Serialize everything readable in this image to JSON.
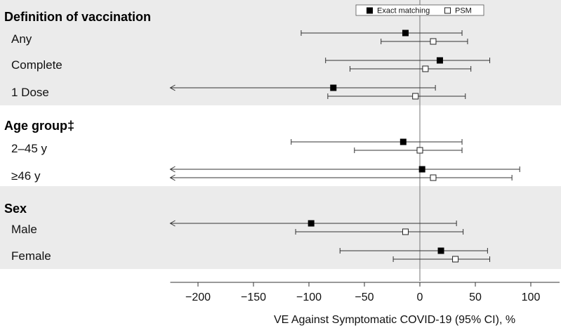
{
  "chart_data": {
    "type": "forest",
    "xlabel": "VE Against Symptomatic COVID-19 (95% CI), %",
    "xlim": [
      -225,
      125
    ],
    "xticks": [
      -200,
      -150,
      -100,
      -50,
      0,
      50,
      100
    ],
    "xtick_labels": [
      "−200",
      "−150",
      "−100",
      "−50",
      "0",
      "50",
      "100"
    ],
    "reference_line": 0,
    "legend": [
      {
        "name": "Exact matching",
        "marker": "filled-square"
      },
      {
        "name": "PSM",
        "marker": "open-square"
      }
    ],
    "groups": [
      {
        "title": "Definition of vaccination",
        "shaded": true,
        "rows": [
          {
            "label": "Any",
            "exact": {
              "est": -13,
              "lo": -107,
              "hi": 38,
              "lo_arrow": false
            },
            "psm": {
              "est": 12,
              "lo": -35,
              "hi": 43,
              "lo_arrow": false
            }
          },
          {
            "label": "Complete",
            "exact": {
              "est": 18,
              "lo": -85,
              "hi": 63,
              "lo_arrow": false
            },
            "psm": {
              "est": 5,
              "lo": -63,
              "hi": 46,
              "lo_arrow": false
            }
          },
          {
            "label": "1 Dose",
            "exact": {
              "est": -78,
              "lo": -225,
              "hi": 14,
              "lo_arrow": true
            },
            "psm": {
              "est": -4,
              "lo": -83,
              "hi": 41,
              "lo_arrow": false
            }
          }
        ]
      },
      {
        "title": "Age group‡",
        "shaded": false,
        "rows": [
          {
            "label": "2–45 y",
            "exact": {
              "est": -15,
              "lo": -116,
              "hi": 38,
              "lo_arrow": false
            },
            "psm": {
              "est": 0,
              "lo": -59,
              "hi": 38,
              "lo_arrow": false
            }
          },
          {
            "label": "≥46 y",
            "exact": {
              "est": 2,
              "lo": -225,
              "hi": 90,
              "lo_arrow": true
            },
            "psm": {
              "est": 12,
              "lo": -225,
              "hi": 83,
              "lo_arrow": true
            }
          }
        ]
      },
      {
        "title": "Sex",
        "shaded": true,
        "rows": [
          {
            "label": "Male",
            "exact": {
              "est": -98,
              "lo": -225,
              "hi": 33,
              "lo_arrow": true
            },
            "psm": {
              "est": -13,
              "lo": -112,
              "hi": 39,
              "lo_arrow": false
            }
          },
          {
            "label": "Female",
            "exact": {
              "est": 19,
              "lo": -72,
              "hi": 61,
              "lo_arrow": false
            },
            "psm": {
              "est": 32,
              "lo": -24,
              "hi": 63,
              "lo_arrow": false
            }
          }
        ]
      }
    ]
  }
}
